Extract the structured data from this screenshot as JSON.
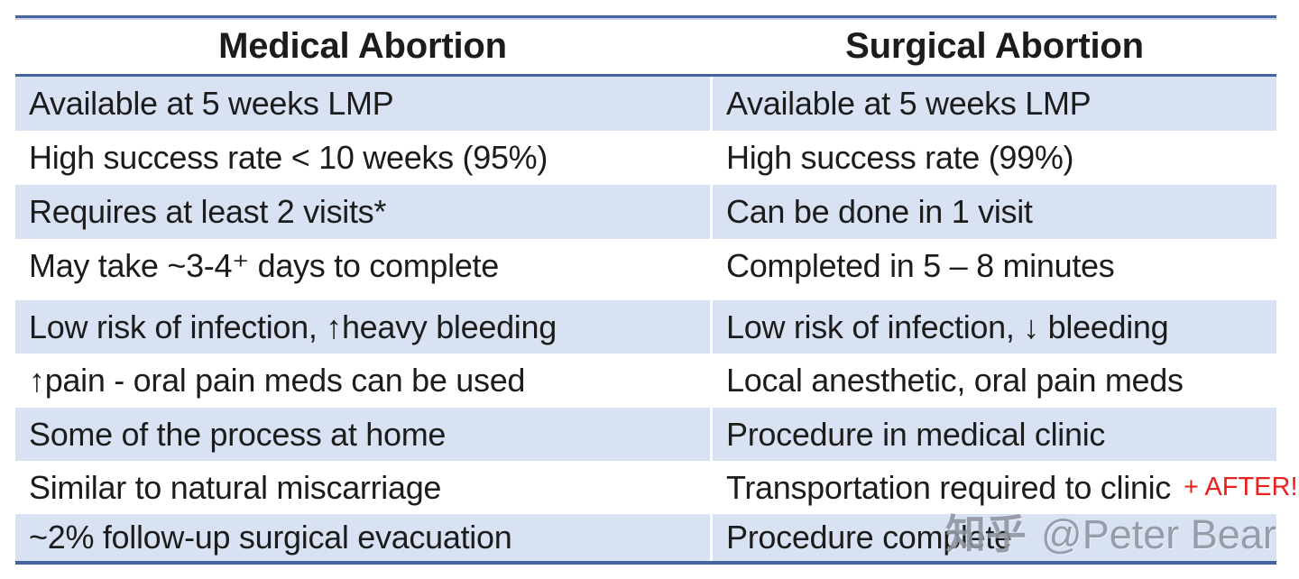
{
  "table": {
    "headers": [
      "Medical Abortion",
      "Surgical Abortion"
    ],
    "group1": [
      {
        "medical": "Available at 5 weeks LMP",
        "surgical": "Available at 5 weeks LMP"
      },
      {
        "medical": "High success rate < 10 weeks (95%)",
        "surgical": "High success rate (99%)"
      },
      {
        "medical": "Requires at least 2 visits*",
        "surgical": "Can be done in 1 visit"
      },
      {
        "medical": "May take ~3-4⁺ days to complete",
        "surgical": "Completed in 5 – 8 minutes"
      }
    ],
    "group2": [
      {
        "medical": "Low risk of infection, ↑heavy bleeding",
        "surgical": "Low risk of infection, ↓ bleeding"
      },
      {
        "medical": "↑pain - oral pain meds can be used",
        "surgical": "Local anesthetic, oral pain meds"
      },
      {
        "medical": "Some of the process at home",
        "surgical": "Procedure in medical clinic"
      },
      {
        "medical": "Similar to natural miscarriage",
        "surgical": "Transportation required to clinic",
        "annotation": "+ AFTER!"
      },
      {
        "medical": "~2% follow-up surgical evacuation",
        "surgical": "Procedure complete"
      }
    ]
  },
  "watermark": {
    "logo": "知乎",
    "handle": "@Peter Bear"
  },
  "colors": {
    "shaded_row": "#d9e2f3",
    "table_border": "#45649f",
    "annotation_red": "#e8201e",
    "watermark_gray": "#80868f",
    "text": "#1c1c1c"
  }
}
